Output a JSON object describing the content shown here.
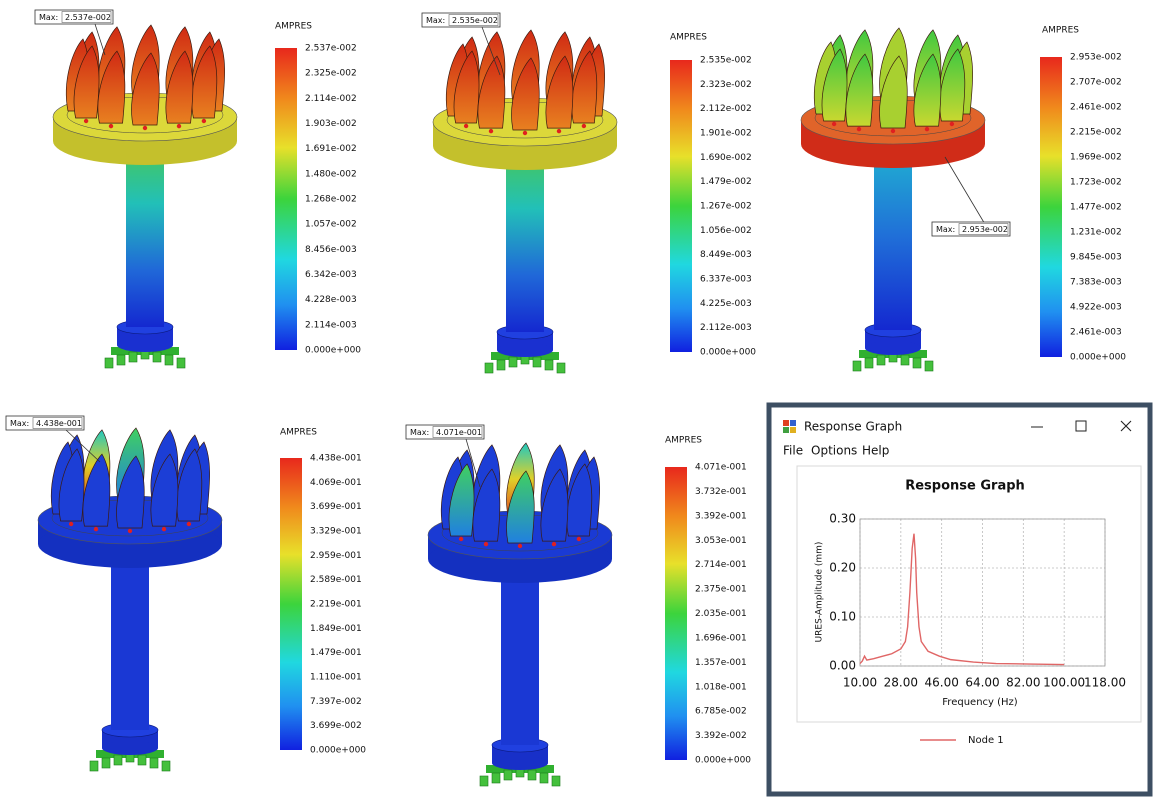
{
  "panels": [
    {
      "unit": "AMPRES",
      "max_prefix": "Max:",
      "max_value": "2.537e-002",
      "legend": [
        "2.537e-002",
        "2.325e-002",
        "2.114e-002",
        "1.903e-002",
        "1.691e-002",
        "1.480e-002",
        "1.268e-002",
        "1.057e-002",
        "8.456e-003",
        "6.342e-003",
        "4.228e-003",
        "2.114e-003",
        "0.000e+000"
      ]
    },
    {
      "unit": "AMPRES",
      "max_prefix": "Max:",
      "max_value": "2.535e-002",
      "legend": [
        "2.535e-002",
        "2.323e-002",
        "2.112e-002",
        "1.901e-002",
        "1.690e-002",
        "1.479e-002",
        "1.267e-002",
        "1.056e-002",
        "8.449e-003",
        "6.337e-003",
        "4.225e-003",
        "2.112e-003",
        "0.000e+000"
      ]
    },
    {
      "unit": "AMPRES",
      "max_prefix": "Max:",
      "max_value": "2.953e-002",
      "legend": [
        "2.953e-002",
        "2.707e-002",
        "2.461e-002",
        "2.215e-002",
        "1.969e-002",
        "1.723e-002",
        "1.477e-002",
        "1.231e-002",
        "9.845e-003",
        "7.383e-003",
        "4.922e-003",
        "2.461e-003",
        "0.000e+000"
      ]
    },
    {
      "unit": "AMPRES",
      "max_prefix": "Max:",
      "max_value": "4.438e-001",
      "legend": [
        "4.438e-001",
        "4.069e-001",
        "3.699e-001",
        "3.329e-001",
        "2.959e-001",
        "2.589e-001",
        "2.219e-001",
        "1.849e-001",
        "1.479e-001",
        "1.110e-001",
        "7.397e-002",
        "3.699e-002",
        "0.000e+000"
      ]
    },
    {
      "unit": "AMPRES",
      "max_prefix": "Max:",
      "max_value": "4.071e-001",
      "legend": [
        "4.071e-001",
        "3.732e-001",
        "3.392e-001",
        "3.053e-001",
        "2.714e-001",
        "2.375e-001",
        "2.035e-001",
        "1.696e-001",
        "1.357e-001",
        "1.018e-001",
        "6.785e-002",
        "3.392e-002",
        "0.000e+000"
      ]
    }
  ],
  "window": {
    "title": "Response Graph",
    "menu": [
      "File",
      "Options",
      "Help"
    ]
  },
  "chart_data": {
    "type": "line",
    "title": "Response Graph",
    "x_label": "Frequency (Hz)",
    "y_label": "URES-Amplitude (mm)",
    "x": [
      10,
      11,
      12,
      13,
      16,
      20,
      24,
      28,
      30,
      31,
      32,
      33,
      33.8,
      34.5,
      35,
      36,
      37,
      40,
      45,
      50,
      60,
      70,
      85,
      100
    ],
    "series": [
      {
        "name": "Node 1",
        "color": "#e06666",
        "values": [
          0.005,
          0.01,
          0.02,
          0.012,
          0.015,
          0.02,
          0.025,
          0.035,
          0.05,
          0.08,
          0.15,
          0.24,
          0.27,
          0.22,
          0.15,
          0.08,
          0.05,
          0.03,
          0.02,
          0.013,
          0.008,
          0.005,
          0.004,
          0.003
        ]
      }
    ],
    "xlim": [
      10,
      118
    ],
    "ylim": [
      0,
      0.3
    ],
    "xticks": [
      {
        "value": 10,
        "label": "10.00"
      },
      {
        "value": 28,
        "label": "28.00"
      },
      {
        "value": 46,
        "label": "46.00"
      },
      {
        "value": 64,
        "label": "64.00"
      },
      {
        "value": 82,
        "label": "82.00"
      },
      {
        "value": 100,
        "label": "100.00"
      },
      {
        "value": 118,
        "label": "118.00"
      }
    ],
    "yticks": [
      {
        "value": 0,
        "label": "0.00"
      },
      {
        "value": 0.1,
        "label": "0.10"
      },
      {
        "value": 0.2,
        "label": "0.20"
      },
      {
        "value": 0.3,
        "label": "0.30"
      }
    ],
    "grid": true
  }
}
